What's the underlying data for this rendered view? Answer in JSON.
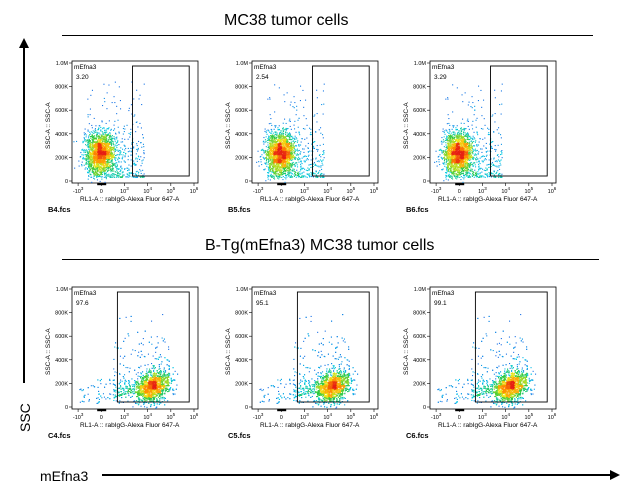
{
  "titles": {
    "top": "MC38 tumor cells",
    "bottom": "B-Tg(mEfna3) MC38 tumor cells"
  },
  "axes": {
    "y_big": "SSC",
    "x_big": "mEfna3",
    "x_label": "RL1-A :: rabIgG-Alexa Fluor   647-A",
    "y_label": "SSC-A :: SSC-A",
    "y_ticks": [
      "1.0M",
      "800K",
      "600K",
      "400K",
      "200K",
      "0"
    ],
    "x_ticks": [
      "-10",
      "0",
      "10",
      "10",
      "10",
      "10"
    ],
    "x_tick_exps": [
      "3",
      "",
      "3",
      "4",
      "5",
      "6"
    ]
  },
  "chart_data": [
    {
      "type": "scatter",
      "file": "B4.fcs",
      "gate": "mEfna3",
      "percent": "3.20",
      "population": "negative"
    },
    {
      "type": "scatter",
      "file": "B5.fcs",
      "gate": "mEfna3",
      "percent": "2.54",
      "population": "negative"
    },
    {
      "type": "scatter",
      "file": "B6.fcs",
      "gate": "mEfna3",
      "percent": "3.29",
      "population": "negative"
    },
    {
      "type": "scatter",
      "file": "C4.fcs",
      "gate": "mEfna3",
      "percent": "97.6",
      "population": "positive"
    },
    {
      "type": "scatter",
      "file": "C5.fcs",
      "gate": "mEfna3",
      "percent": "95.1",
      "population": "positive"
    },
    {
      "type": "scatter",
      "file": "C6.fcs",
      "gate": "mEfna3",
      "percent": "99.1",
      "population": "positive"
    }
  ]
}
